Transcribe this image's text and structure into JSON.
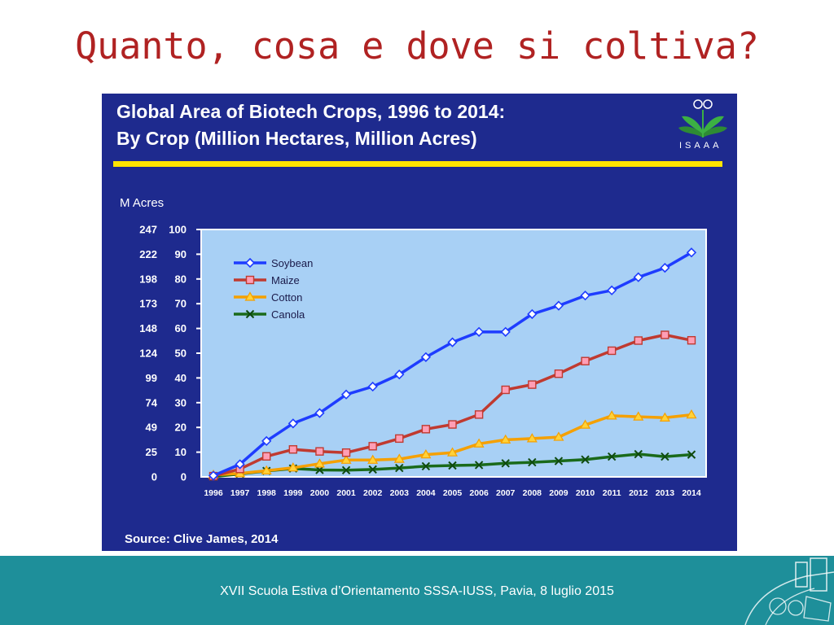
{
  "slide": {
    "title": "Quanto, cosa e dove si coltiva?",
    "footer": "XVII Scuola Estiva d’Orientamento SSSA-IUSS, Pavia, 8 luglio 2015"
  },
  "logo": {
    "text": "ISAAA",
    "icon": "isaaa-plant-logo-icon"
  },
  "colors": {
    "panel_bg": "#1e2a8e",
    "plot_bg": "#a8d0f5",
    "highlight_bar": "#ffe400",
    "footer_bg": "#1e8f9a",
    "title_red": "#b02222"
  },
  "chart_data": {
    "type": "line",
    "title": "Global Area of Biotech Crops, 1996 to 2014:",
    "subtitle": "By Crop (Million Hectares, Million Acres)",
    "y_unit_label": "M Acres",
    "source": "Source: Clive James, 2014",
    "x": [
      "1996",
      "1997",
      "1998",
      "1999",
      "2000",
      "2001",
      "2002",
      "2003",
      "2004",
      "2005",
      "2006",
      "2007",
      "2008",
      "2009",
      "2010",
      "2011",
      "2012",
      "2013",
      "2014"
    ],
    "ylim": [
      0,
      100
    ],
    "y_ticks_hectares": [
      "0",
      "10",
      "20",
      "30",
      "40",
      "50",
      "60",
      "70",
      "80",
      "90",
      "100"
    ],
    "y_ticks_acres": [
      "0",
      "25",
      "49",
      "74",
      "99",
      "124",
      "148",
      "173",
      "198",
      "222",
      "247"
    ],
    "grid": false,
    "legend_position": "top-left",
    "series": [
      {
        "name": "Soybean",
        "color": "#1e3cff",
        "marker": "diamond",
        "values": [
          0.5,
          5.1,
          14.5,
          21.6,
          25.8,
          33.3,
          36.5,
          41.4,
          48.4,
          54.4,
          58.6,
          58.6,
          65.8,
          69.2,
          73.3,
          75.4,
          80.7,
          84.5,
          90.7
        ]
      },
      {
        "name": "Maize",
        "color": "#c03a30",
        "marker": "square",
        "values": [
          0.3,
          3.2,
          8.3,
          11.1,
          10.3,
          9.8,
          12.4,
          15.5,
          19.3,
          21.2,
          25.2,
          35.2,
          37.3,
          41.7,
          46.8,
          51.0,
          55.1,
          57.4,
          55.2
        ]
      },
      {
        "name": "Cotton",
        "color": "#f5a000",
        "marker": "triangle",
        "values": [
          0.8,
          1.4,
          2.5,
          3.7,
          5.3,
          6.8,
          6.8,
          7.2,
          9.0,
          9.8,
          13.4,
          15.0,
          15.5,
          16.1,
          21.0,
          24.7,
          24.3,
          23.9,
          25.1
        ]
      },
      {
        "name": "Canola",
        "color": "#1a6a1a",
        "marker": "x",
        "values": [
          0.1,
          1.2,
          2.4,
          3.4,
          2.8,
          2.7,
          3.0,
          3.6,
          4.3,
          4.6,
          4.8,
          5.5,
          5.9,
          6.4,
          7.0,
          8.2,
          9.2,
          8.2,
          9.0
        ]
      }
    ]
  }
}
